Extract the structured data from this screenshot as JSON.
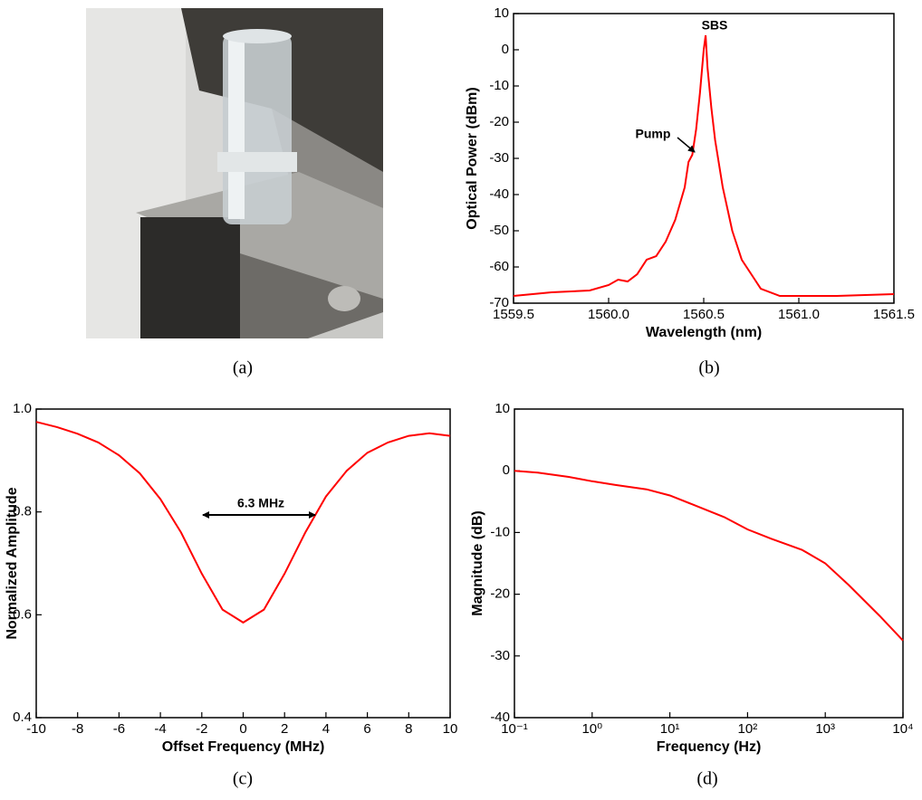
{
  "photo": {
    "caption": "(a)"
  },
  "chart_data": [
    {
      "type": "line",
      "caption": "(b)",
      "xlabel": "Wavelength (nm)",
      "ylabel": "Optical Power (dBm)",
      "color": "#ff0000",
      "annotations": [
        "SBS",
        "Pump"
      ],
      "x": [
        1559.5,
        1559.7,
        1559.9,
        1560.0,
        1560.05,
        1560.1,
        1560.15,
        1560.2,
        1560.25,
        1560.3,
        1560.35,
        1560.4,
        1560.42,
        1560.44,
        1560.46,
        1560.48,
        1560.5,
        1560.51,
        1560.52,
        1560.54,
        1560.56,
        1560.6,
        1560.65,
        1560.7,
        1560.75,
        1560.8,
        1560.9,
        1561.0,
        1561.2,
        1561.5
      ],
      "values": [
        -68,
        -67,
        -66.5,
        -65,
        -63.5,
        -64,
        -62,
        -58,
        -57,
        -53,
        -47,
        -38,
        -31,
        -29,
        -22,
        -12,
        0,
        4,
        -5,
        -16,
        -25,
        -38,
        -50,
        -58,
        -62,
        -66,
        -68,
        -68,
        -68,
        -67.5
      ],
      "xlim": [
        1559.5,
        1561.5
      ],
      "xticks": [
        1559.5,
        {
          "value": 1560,
          "label": "1560.0"
        },
        1560.5,
        {
          "value": 1561,
          "label": "1561.0"
        },
        1561.5
      ],
      "ylim": [
        -70,
        10
      ],
      "yticks": [
        -70,
        -60,
        -50,
        -40,
        -30,
        -20,
        -10,
        0,
        10
      ]
    },
    {
      "type": "line",
      "caption": "(c)",
      "xlabel": "Offset Frequency (MHz)",
      "ylabel": "Normalized Amplitude",
      "color": "#ff0000",
      "annotations": [
        "6.3 MHz"
      ],
      "x": [
        -10,
        -9,
        -8,
        -7,
        -6,
        -5,
        -4,
        -3,
        -2,
        -1,
        0,
        1,
        2,
        3,
        4,
        5,
        6,
        7,
        8,
        9,
        10
      ],
      "values": [
        0.975,
        0.965,
        0.952,
        0.935,
        0.91,
        0.875,
        0.825,
        0.76,
        0.68,
        0.61,
        0.585,
        0.61,
        0.68,
        0.76,
        0.83,
        0.88,
        0.915,
        0.935,
        0.948,
        0.953,
        0.948
      ],
      "xlim": [
        -10,
        10
      ],
      "xticks": [
        -10,
        -8,
        -6,
        -4,
        -2,
        0,
        2,
        4,
        6,
        8,
        10
      ],
      "ylim": [
        0.4,
        1
      ],
      "yticks": [
        0.4,
        0.6,
        0.8,
        {
          "value": 1,
          "label": "1.0"
        }
      ]
    },
    {
      "type": "line",
      "caption": "(d)",
      "xlabel": "Frequency (Hz)",
      "ylabel": "Magnitude (dB)",
      "color": "#ff0000",
      "log_x": true,
      "x": [
        0.1,
        0.2,
        0.5,
        1,
        2,
        5,
        10,
        20,
        50,
        100,
        200,
        500,
        1000,
        2000,
        5000,
        10000
      ],
      "values": [
        0,
        -0.3,
        -1,
        -1.7,
        -2.3,
        -3,
        -4,
        -5.5,
        -7.5,
        -9.5,
        -11,
        -12.8,
        -15,
        -18.5,
        -23.5,
        -27.5
      ],
      "xlim": [
        0.1,
        10000
      ],
      "xticks": [
        {
          "value": 0.1,
          "label": "10⁻¹"
        },
        {
          "value": 1,
          "label": "10⁰"
        },
        {
          "value": 10,
          "label": "10¹"
        },
        {
          "value": 100,
          "label": "10²"
        },
        {
          "value": 1000,
          "label": "10³"
        },
        {
          "value": 10000,
          "label": "10⁴"
        }
      ],
      "ylim": [
        -40,
        10
      ],
      "yticks": [
        -40,
        -30,
        -20,
        -10,
        0,
        10
      ]
    }
  ]
}
